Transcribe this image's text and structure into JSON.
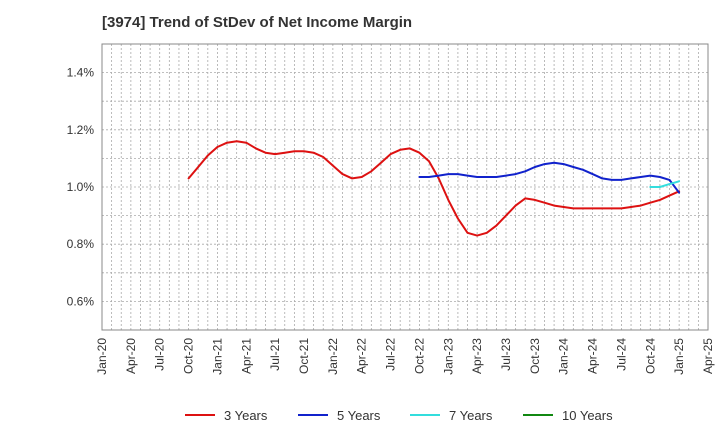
{
  "chart_data": {
    "type": "line",
    "title": "[3974]  Trend of StDev of Net Income Margin",
    "xlabel": "",
    "ylabel": "",
    "x_ticks": [
      "Jan-20",
      "Apr-20",
      "Jul-20",
      "Oct-20",
      "Jan-21",
      "Apr-21",
      "Jul-21",
      "Oct-21",
      "Jan-22",
      "Apr-22",
      "Jul-22",
      "Oct-22",
      "Jan-23",
      "Apr-23",
      "Jul-23",
      "Oct-23",
      "Jan-24",
      "Apr-24",
      "Jul-24",
      "Oct-24",
      "Jan-25",
      "Apr-25"
    ],
    "y_ticks": [
      "0.6%",
      "0.8%",
      "1.0%",
      "1.2%",
      "1.4%"
    ],
    "y_tick_values": [
      0.6,
      0.8,
      1.0,
      1.2,
      1.4
    ],
    "ylim": [
      0.5,
      1.5
    ],
    "grid": true,
    "legend_position": "bottom",
    "series": [
      {
        "name": "3 Years",
        "color": "#dd1111",
        "points": [
          [
            "Oct-20",
            1.03
          ],
          [
            "Nov-20",
            1.07
          ],
          [
            "Dec-20",
            1.11
          ],
          [
            "Jan-21",
            1.14
          ],
          [
            "Feb-21",
            1.155
          ],
          [
            "Mar-21",
            1.16
          ],
          [
            "Apr-21",
            1.155
          ],
          [
            "May-21",
            1.135
          ],
          [
            "Jun-21",
            1.12
          ],
          [
            "Jul-21",
            1.115
          ],
          [
            "Aug-21",
            1.12
          ],
          [
            "Sep-21",
            1.125
          ],
          [
            "Oct-21",
            1.125
          ],
          [
            "Nov-21",
            1.12
          ],
          [
            "Dec-21",
            1.105
          ],
          [
            "Jan-22",
            1.075
          ],
          [
            "Feb-22",
            1.045
          ],
          [
            "Mar-22",
            1.03
          ],
          [
            "Apr-22",
            1.035
          ],
          [
            "May-22",
            1.055
          ],
          [
            "Jun-22",
            1.085
          ],
          [
            "Jul-22",
            1.115
          ],
          [
            "Aug-22",
            1.13
          ],
          [
            "Sep-22",
            1.135
          ],
          [
            "Oct-22",
            1.12
          ],
          [
            "Nov-22",
            1.09
          ],
          [
            "Dec-22",
            1.03
          ],
          [
            "Jan-23",
            0.955
          ],
          [
            "Feb-23",
            0.89
          ],
          [
            "Mar-23",
            0.84
          ],
          [
            "Apr-23",
            0.83
          ],
          [
            "May-23",
            0.84
          ],
          [
            "Jun-23",
            0.865
          ],
          [
            "Jul-23",
            0.9
          ],
          [
            "Aug-23",
            0.935
          ],
          [
            "Sep-23",
            0.96
          ],
          [
            "Oct-23",
            0.955
          ],
          [
            "Nov-23",
            0.945
          ],
          [
            "Dec-23",
            0.935
          ],
          [
            "Jan-24",
            0.93
          ],
          [
            "Feb-24",
            0.925
          ],
          [
            "Mar-24",
            0.925
          ],
          [
            "Apr-24",
            0.925
          ],
          [
            "May-24",
            0.925
          ],
          [
            "Jun-24",
            0.925
          ],
          [
            "Jul-24",
            0.925
          ],
          [
            "Aug-24",
            0.93
          ],
          [
            "Sep-24",
            0.935
          ],
          [
            "Oct-24",
            0.945
          ],
          [
            "Nov-24",
            0.955
          ],
          [
            "Dec-24",
            0.97
          ],
          [
            "Jan-25",
            0.985
          ]
        ]
      },
      {
        "name": "5 Years",
        "color": "#1122cc",
        "points": [
          [
            "Oct-22",
            1.035
          ],
          [
            "Nov-22",
            1.035
          ],
          [
            "Dec-22",
            1.04
          ],
          [
            "Jan-23",
            1.045
          ],
          [
            "Feb-23",
            1.045
          ],
          [
            "Mar-23",
            1.04
          ],
          [
            "Apr-23",
            1.035
          ],
          [
            "May-23",
            1.035
          ],
          [
            "Jun-23",
            1.035
          ],
          [
            "Jul-23",
            1.04
          ],
          [
            "Aug-23",
            1.045
          ],
          [
            "Sep-23",
            1.055
          ],
          [
            "Oct-23",
            1.07
          ],
          [
            "Nov-23",
            1.08
          ],
          [
            "Dec-23",
            1.085
          ],
          [
            "Jan-24",
            1.08
          ],
          [
            "Feb-24",
            1.07
          ],
          [
            "Mar-24",
            1.06
          ],
          [
            "Apr-24",
            1.045
          ],
          [
            "May-24",
            1.03
          ],
          [
            "Jun-24",
            1.025
          ],
          [
            "Jul-24",
            1.025
          ],
          [
            "Aug-24",
            1.03
          ],
          [
            "Sep-24",
            1.035
          ],
          [
            "Oct-24",
            1.04
          ],
          [
            "Nov-24",
            1.035
          ],
          [
            "Dec-24",
            1.025
          ],
          [
            "Jan-25",
            0.98
          ]
        ]
      },
      {
        "name": "7 Years",
        "color": "#33dddd",
        "points": [
          [
            "Oct-24",
            1.0
          ],
          [
            "Nov-24",
            1.0
          ],
          [
            "Dec-24",
            1.01
          ],
          [
            "Jan-25",
            1.02
          ]
        ]
      },
      {
        "name": "10 Years",
        "color": "#118811",
        "points": []
      }
    ]
  }
}
